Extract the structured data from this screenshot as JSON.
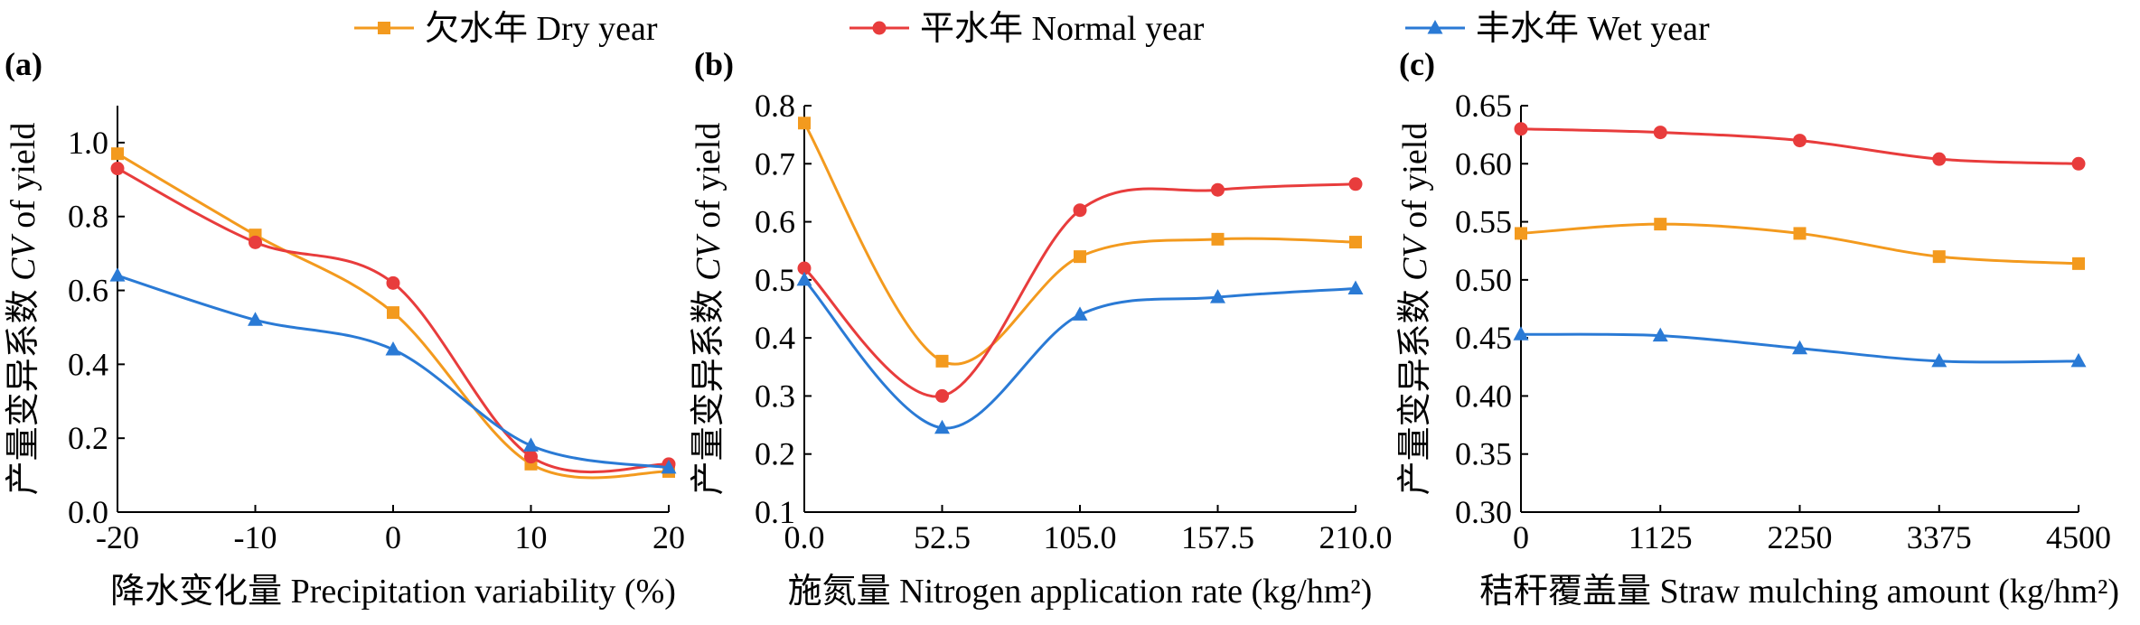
{
  "legend": [
    {
      "label": "欠水年 Dry year",
      "color": "#f39a1e",
      "marker": "square"
    },
    {
      "label": "平水年 Normal year",
      "color": "#e83c3c",
      "marker": "circle"
    },
    {
      "label": "丰水年 Wet year",
      "color": "#2a7ad5",
      "marker": "triangle"
    }
  ],
  "chart_data": [
    {
      "type": "line",
      "panel": "(a)",
      "xlabel": "降水变化量 Precipitation variability (%)",
      "ylabel_cn": "产量变异系数",
      "ylabel_cv": "CV",
      "ylabel_tail": "of yield",
      "x": [
        -20,
        -10,
        0,
        10,
        20
      ],
      "xlim": [
        -20,
        20
      ],
      "ylim": [
        0.0,
        1.1
      ],
      "xticks": [
        "-20",
        "-10",
        "0",
        "10",
        "20"
      ],
      "yticks": [
        0.0,
        0.2,
        0.4,
        0.6,
        0.8,
        1.0
      ],
      "ytick_labels": [
        "0.0",
        "0.2",
        "0.4",
        "0.6",
        "0.8",
        "1.0"
      ],
      "series": [
        {
          "name": "欠水年 Dry year",
          "values": [
            0.97,
            0.75,
            0.54,
            0.13,
            0.11
          ]
        },
        {
          "name": "平水年 Normal year",
          "values": [
            0.93,
            0.73,
            0.62,
            0.15,
            0.13
          ]
        },
        {
          "name": "丰水年 Wet year",
          "values": [
            0.64,
            0.52,
            0.44,
            0.18,
            0.12
          ]
        }
      ]
    },
    {
      "type": "line",
      "panel": "(b)",
      "xlabel": "施氮量 Nitrogen application rate (kg/hm²)",
      "ylabel_cn": "产量变异系数",
      "ylabel_cv": "CV",
      "ylabel_tail": "of yield",
      "x": [
        0.0,
        52.5,
        105.0,
        157.5,
        210.0
      ],
      "xlim": [
        0,
        210
      ],
      "ylim": [
        0.1,
        0.8
      ],
      "xticks": [
        "0.0",
        "52.5",
        "105.0",
        "157.5",
        "210.0"
      ],
      "yticks": [
        0.1,
        0.2,
        0.3,
        0.4,
        0.5,
        0.6,
        0.7,
        0.8
      ],
      "ytick_labels": [
        "0.1",
        "0.2",
        "0.3",
        "0.4",
        "0.5",
        "0.6",
        "0.7",
        "0.8"
      ],
      "series": [
        {
          "name": "欠水年 Dry year",
          "values": [
            0.77,
            0.36,
            0.54,
            0.57,
            0.565
          ]
        },
        {
          "name": "平水年 Normal year",
          "values": [
            0.52,
            0.3,
            0.62,
            0.655,
            0.665
          ]
        },
        {
          "name": "丰水年 Wet year",
          "values": [
            0.5,
            0.245,
            0.44,
            0.47,
            0.485
          ]
        }
      ]
    },
    {
      "type": "line",
      "panel": "(c)",
      "xlabel": "秸秆覆盖量 Straw mulching amount (kg/hm²)",
      "ylabel_cn": "产量变异系数",
      "ylabel_cv": "CV",
      "ylabel_tail": "of yield",
      "x": [
        0,
        1125,
        2250,
        3375,
        4500
      ],
      "xlim": [
        0,
        4500
      ],
      "ylim": [
        0.3,
        0.65
      ],
      "xticks": [
        "0",
        "1125",
        "2250",
        "3375",
        "4500"
      ],
      "yticks": [
        0.3,
        0.35,
        0.4,
        0.45,
        0.5,
        0.55,
        0.6,
        0.65
      ],
      "ytick_labels": [
        "0.30",
        "0.35",
        "0.40",
        "0.45",
        "0.50",
        "0.55",
        "0.60",
        "0.65"
      ],
      "series": [
        {
          "name": "欠水年 Dry year",
          "values": [
            0.54,
            0.548,
            0.54,
            0.52,
            0.514
          ]
        },
        {
          "name": "平水年 Normal year",
          "values": [
            0.63,
            0.627,
            0.62,
            0.604,
            0.6
          ]
        },
        {
          "name": "丰水年 Wet year",
          "values": [
            0.453,
            0.452,
            0.441,
            0.43,
            0.43
          ]
        }
      ]
    }
  ]
}
